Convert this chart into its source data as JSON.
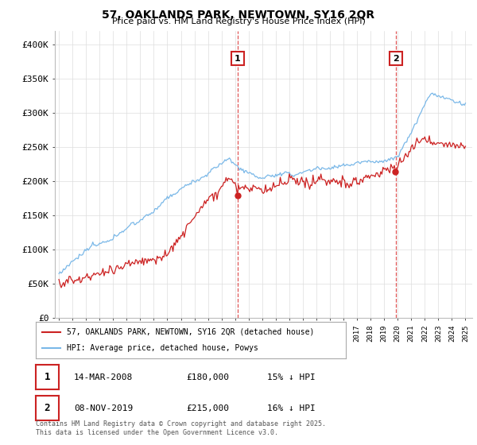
{
  "title1": "57, OAKLANDS PARK, NEWTOWN, SY16 2QR",
  "title2": "Price paid vs. HM Land Registry's House Price Index (HPI)",
  "ylim": [
    0,
    420000
  ],
  "yticks": [
    0,
    50000,
    100000,
    150000,
    200000,
    250000,
    300000,
    350000,
    400000
  ],
  "ytick_labels": [
    "£0",
    "£50K",
    "£100K",
    "£150K",
    "£200K",
    "£250K",
    "£300K",
    "£350K",
    "£400K"
  ],
  "hpi_color": "#7ab8e8",
  "sale_color": "#cc2222",
  "vline_color": "#dd4444",
  "annotation_box_color": "#cc2222",
  "sale_dates": [
    2008.19,
    2019.86
  ],
  "sale_values": [
    180000,
    215000
  ],
  "legend_line1": "57, OAKLANDS PARK, NEWTOWN, SY16 2QR (detached house)",
  "legend_line2": "HPI: Average price, detached house, Powys",
  "table_row1": [
    "1",
    "14-MAR-2008",
    "£180,000",
    "15% ↓ HPI"
  ],
  "table_row2": [
    "2",
    "08-NOV-2019",
    "£215,000",
    "16% ↓ HPI"
  ],
  "footer": "Contains HM Land Registry data © Crown copyright and database right 2025.\nThis data is licensed under the Open Government Licence v3.0.",
  "background_color": "#ffffff",
  "grid_color": "#dddddd"
}
